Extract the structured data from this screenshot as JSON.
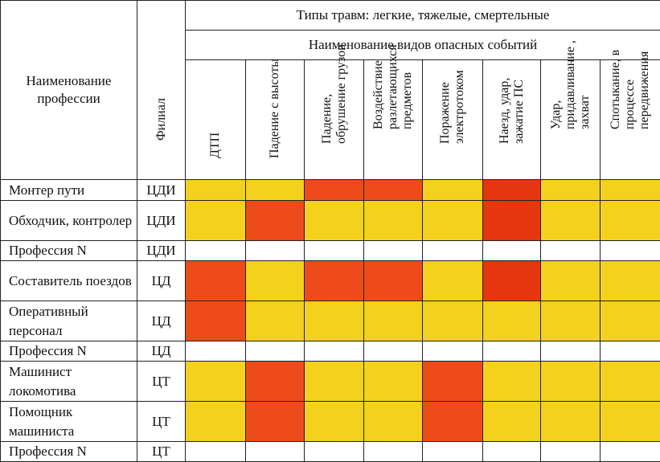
{
  "header": {
    "profession": "Наименование профессии",
    "branch": "Филиал",
    "injury_types": "Типы травм: легкие, тяжелые, смертельные",
    "events_title": "Наименование видов опасных событий",
    "events": [
      "ДТП",
      "Падение с высоты",
      "Падение, обрушение грузов",
      "Воздействие разлетающихся предметов",
      "Поражение электротоком",
      "Наезд, удар, зажатие ПС",
      "Удар, придавливание , захват",
      "Спотыкание, в процессе передвижения"
    ]
  },
  "colors": {
    "Y": "#f4d11c",
    "O": "#ee4b1b",
    "R": "#e6360f",
    "W": "#ffffff"
  },
  "rows": [
    {
      "profession": "Монтер пути",
      "branch": "ЦДИ",
      "cells": [
        "Y",
        "Y",
        "O",
        "O",
        "Y",
        "R",
        "Y",
        "Y"
      ]
    },
    {
      "profession": "Обходчик, контролер",
      "branch": "ЦДИ",
      "cells": [
        "Y",
        "O",
        "Y",
        "Y",
        "Y",
        "R",
        "Y",
        "Y"
      ]
    },
    {
      "profession": "Профессия N",
      "branch": "ЦДИ",
      "cells": [
        "W",
        "W",
        "W",
        "W",
        "W",
        "W",
        "W",
        "W"
      ]
    },
    {
      "profession": "Составитель поездов",
      "branch": "ЦД",
      "cells": [
        "O",
        "Y",
        "O",
        "O",
        "Y",
        "R",
        "Y",
        "Y"
      ]
    },
    {
      "profession": "Оперативный персонал",
      "branch": "ЦД",
      "cells": [
        "O",
        "Y",
        "Y",
        "Y",
        "Y",
        "Y",
        "Y",
        "Y"
      ]
    },
    {
      "profession": "Профессия N",
      "branch": "ЦД",
      "cells": [
        "W",
        "W",
        "W",
        "W",
        "W",
        "W",
        "W",
        "W"
      ]
    },
    {
      "profession": "Машинист локомотива",
      "branch": "ЦТ",
      "cells": [
        "Y",
        "O",
        "Y",
        "Y",
        "O",
        "Y",
        "Y",
        "Y"
      ]
    },
    {
      "profession": "Помощник машиниста",
      "branch": "ЦТ",
      "cells": [
        "Y",
        "O",
        "Y",
        "Y",
        "O",
        "Y",
        "Y",
        "Y"
      ]
    },
    {
      "profession": "Профессия N",
      "branch": "ЦТ",
      "cells": [
        "W",
        "W",
        "W",
        "W",
        "W",
        "W",
        "W",
        "W"
      ]
    }
  ]
}
